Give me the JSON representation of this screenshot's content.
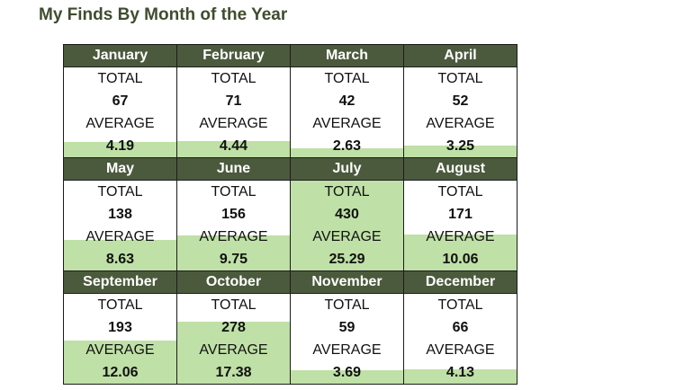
{
  "title": "My Finds By Month of the Year",
  "labels": {
    "total": "TOTAL",
    "average": "AVERAGE"
  },
  "colors": {
    "header_bg": "#4b5a3c",
    "header_text": "#ffffff",
    "bar_fill": "#bfe0a6",
    "title_text": "#3f4d2e"
  },
  "fill_scale_max_average": 25.29,
  "months": [
    {
      "name": "January",
      "total": "67",
      "average": "4.19"
    },
    {
      "name": "February",
      "total": "71",
      "average": "4.44"
    },
    {
      "name": "March",
      "total": "42",
      "average": "2.63"
    },
    {
      "name": "April",
      "total": "52",
      "average": "3.25"
    },
    {
      "name": "May",
      "total": "138",
      "average": "8.63"
    },
    {
      "name": "June",
      "total": "156",
      "average": "9.75"
    },
    {
      "name": "July",
      "total": "430",
      "average": "25.29"
    },
    {
      "name": "August",
      "total": "171",
      "average": "10.06"
    },
    {
      "name": "September",
      "total": "193",
      "average": "12.06"
    },
    {
      "name": "October",
      "total": "278",
      "average": "17.38"
    },
    {
      "name": "November",
      "total": "59",
      "average": "3.69"
    },
    {
      "name": "December",
      "total": "66",
      "average": "4.13"
    }
  ]
}
